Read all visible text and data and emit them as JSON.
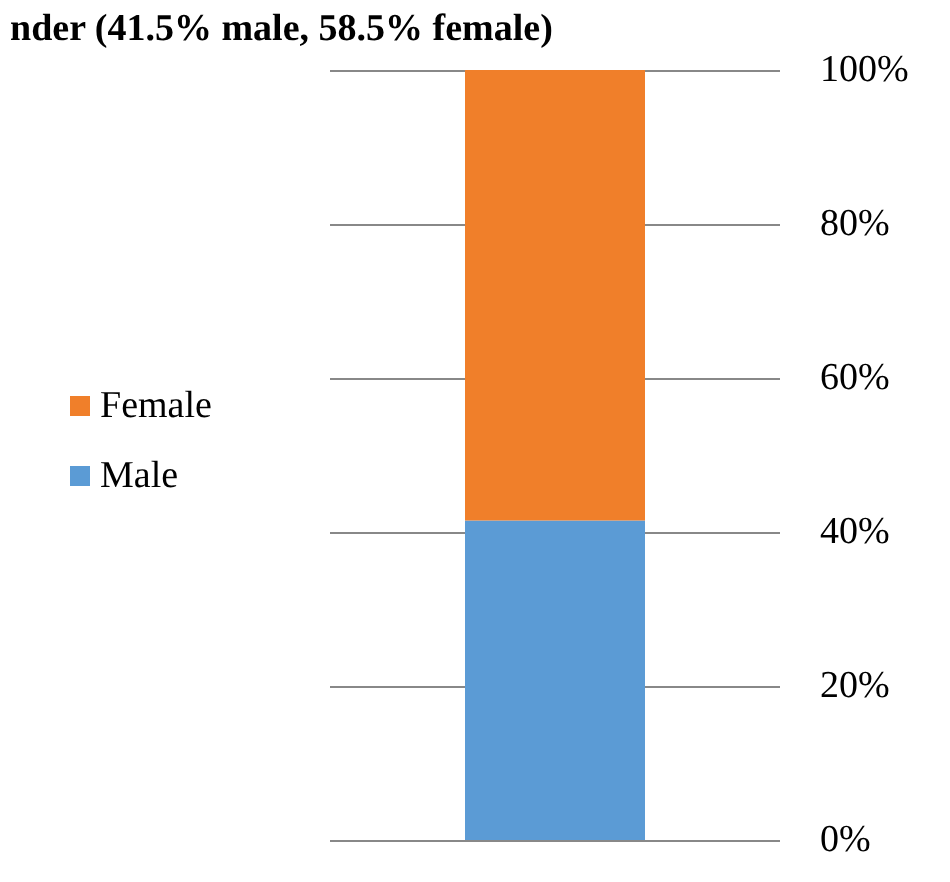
{
  "chart_data": {
    "type": "bar",
    "title": "nder (41.5% male, 58.5% female)",
    "categories": [
      null
    ],
    "stacked": true,
    "series": [
      {
        "name": "Male",
        "color": "#5b9bd5",
        "values": [
          41.5
        ]
      },
      {
        "name": "Female",
        "color": "#f07f2a",
        "values": [
          58.5
        ]
      }
    ],
    "ylim": [
      0,
      100
    ],
    "yticks": [
      {
        "value": 0,
        "label": "0%"
      },
      {
        "value": 20,
        "label": "20%"
      },
      {
        "value": 40,
        "label": "40%"
      },
      {
        "value": 60,
        "label": "60%"
      },
      {
        "value": 80,
        "label": "80%"
      },
      {
        "value": 100,
        "label": "100%"
      }
    ],
    "grid": "y",
    "legend": "left"
  }
}
